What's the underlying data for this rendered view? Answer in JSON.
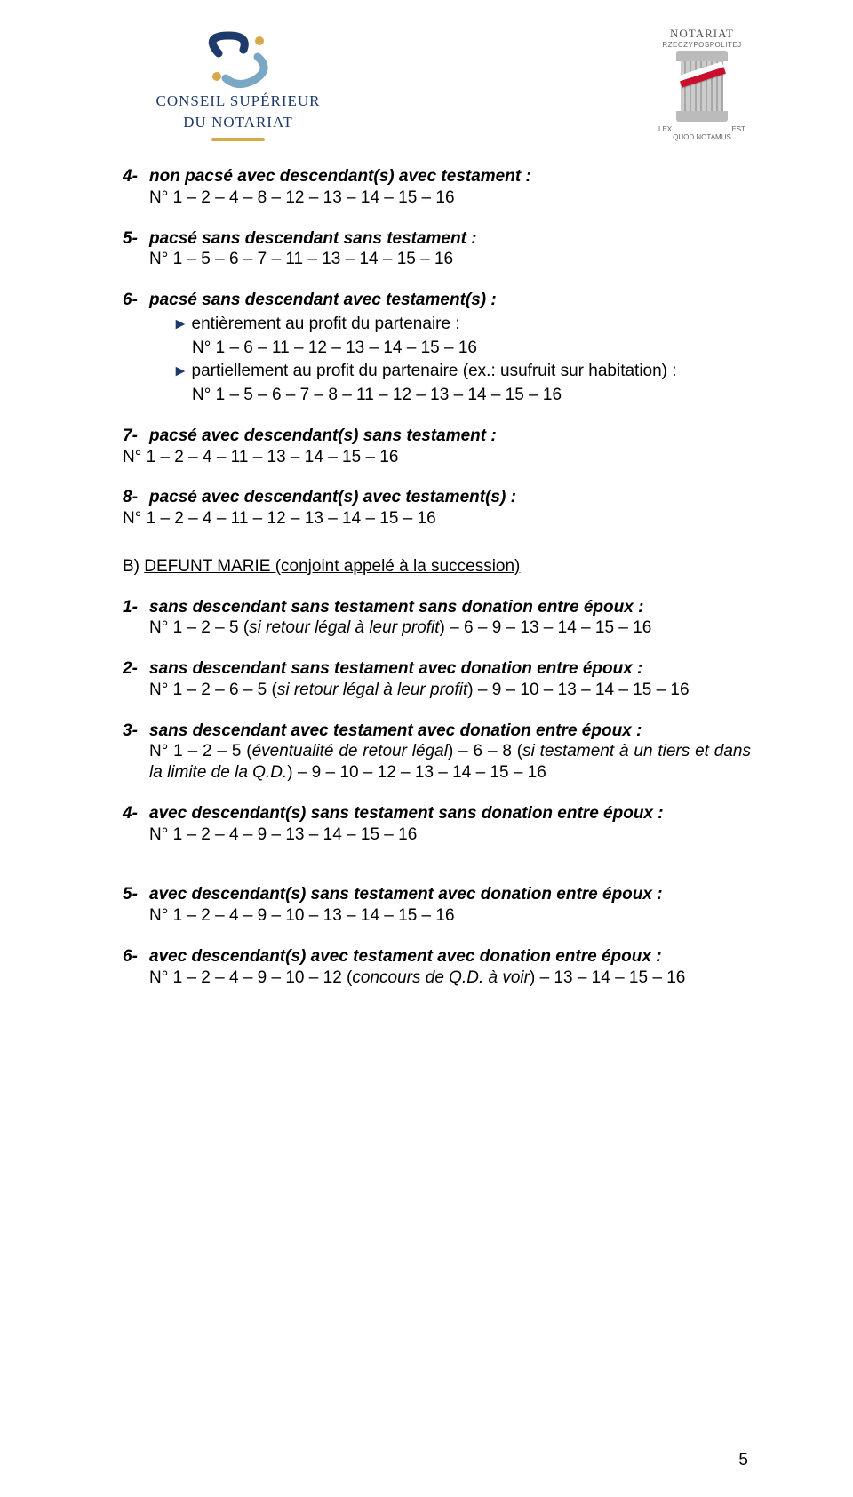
{
  "header": {
    "left_logo": {
      "line1": "CONSEIL SUPÉRIEUR",
      "line2": "DU NOTARIAT",
      "text_color": "#1e3a6b",
      "accent_color": "#d6a94a",
      "swirl_colors": [
        "#1e3a6b",
        "#7aa8c4",
        "#d6a94a"
      ]
    },
    "right_logo": {
      "title": "NOTARIAT",
      "subtitle": "RZECZYPOSPOLITEJ",
      "lex": "LEX",
      "est": "EST",
      "quod": "QUOD NOTAMUS",
      "sash_white": "#ffffff",
      "sash_red": "#c8102e"
    }
  },
  "items_top": [
    {
      "num": "4-",
      "title": "non pacsé avec descendant(s) avec testament :",
      "lines": [
        "N° 1 – 2 – 4 – 8 – 12 – 13 – 14 – 15 – 16"
      ]
    },
    {
      "num": "5-",
      "title": "pacsé sans descendant sans testament :",
      "lines": [
        "N° 1 – 5 – 6 – 7 – 11 – 13 – 14 – 15 – 16"
      ]
    },
    {
      "num": "6-",
      "title": "pacsé sans descendant avec testament(s) :",
      "subs": [
        {
          "label": "entièrement au profit du partenaire :",
          "line": "N° 1 – 6 – 11 – 12 – 13 – 14 – 15 – 16"
        },
        {
          "label": "partiellement au profit du partenaire (ex.: usufruit sur habitation) :",
          "line": "N° 1 – 5 – 6 – 7 – 8 – 11 – 12 – 13 – 14 – 15 – 16"
        }
      ]
    },
    {
      "num": "7-",
      "title": "pacsé avec descendant(s) sans testament :",
      "line_flush": "N° 1 – 2 – 4 – 11 – 13 – 14 – 15 – 16"
    },
    {
      "num": "8-",
      "title": "pacsé avec descendant(s) avec testament(s) :",
      "line_flush": "N° 1 – 2 – 4 – 11 – 12 – 13 – 14 – 15 – 16"
    }
  ],
  "section_b": {
    "letter": "B)",
    "title": "DEFUNT MARIE (conjoint appelé à la succession)"
  },
  "items_b": [
    {
      "num": "1-",
      "title": "sans descendant sans testament sans donation entre époux :",
      "line_parts": [
        "N° 1 – 2 – 5 (",
        "si retour légal à leur profit",
        ") – 6 – 9 – 13 – 14 – 15 – 16"
      ]
    },
    {
      "num": "2-",
      "title": "sans descendant sans testament avec donation entre époux :",
      "line_parts": [
        "N° 1 – 2 – 6 – 5 (",
        "si retour légal à leur profit",
        ") – 9 – 10 – 13 – 14 – 15 – 16"
      ]
    },
    {
      "num": "3-",
      "title": "sans descendant avec testament avec donation entre époux :",
      "multiline": [
        [
          "N° 1 – 2 – 5 (",
          "éventualité de retour légal",
          ") – 6 – 8 (",
          "si testament à un tiers et dans la limite de la Q.D.",
          ") – 9 – 10 – 12 – 13 – 14 – 15 – 16"
        ]
      ]
    },
    {
      "num": "4-",
      "title": "avec descendant(s) sans testament sans donation entre époux :",
      "lines": [
        "N° 1 – 2 – 4 – 9 – 13 – 14 – 15 – 16"
      ]
    },
    {
      "num": "5-",
      "title": "avec descendant(s) sans testament avec donation entre époux :",
      "lines": [
        "N° 1 – 2 – 4 – 9 – 10 – 13 – 14 – 15 – 16"
      ]
    },
    {
      "num": "6-",
      "title": "avec descendant(s) avec testament avec donation entre époux :",
      "line_parts": [
        "N° 1 – 2 – 4 – 9 – 10 – 12 (",
        "concours de Q.D. à voir",
        ") – 13 – 14 – 15 – 16"
      ]
    }
  ],
  "page_number": "5",
  "spacing": {
    "b_extra_gap_after": 3
  }
}
